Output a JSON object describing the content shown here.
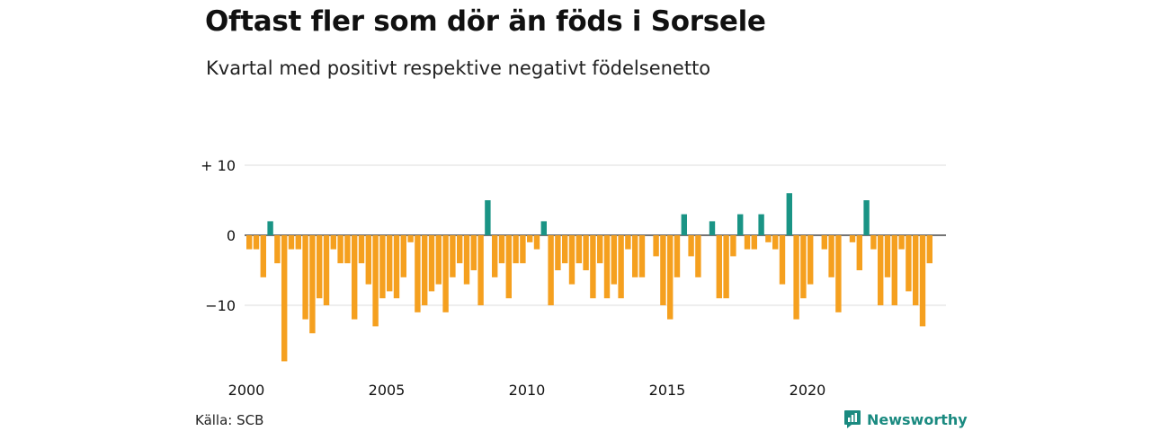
{
  "title": "Oftast fler som dör än föds i Sorsele",
  "subtitle": "Kvartal med positivt respektive negativt födelsenetto",
  "source": "Källa: SCB",
  "brand": {
    "name": "Newsworthy",
    "icon": "newsworthy-logo-icon",
    "color": "#1a8a80"
  },
  "colors": {
    "positive": "#1a9485",
    "negative": "#f5a01f",
    "grid": "#dddddd",
    "zero": "#222222"
  },
  "chart_data": {
    "type": "bar",
    "title": "Oftast fler som dör än föds i Sorsele",
    "subtitle": "Kvartal med positivt respektive negativt födelsenetto",
    "ylim": [
      -18,
      10
    ],
    "y_ticks": [
      {
        "value": 10,
        "label": "+ 10"
      },
      {
        "value": 0,
        "label": "0"
      },
      {
        "value": -10,
        "label": "−10"
      }
    ],
    "x_ticks": [
      {
        "year": 2000,
        "label": "2000"
      },
      {
        "year": 2005,
        "label": "2005"
      },
      {
        "year": 2010,
        "label": "2010"
      },
      {
        "year": 2015,
        "label": "2015"
      },
      {
        "year": 2020,
        "label": "2020"
      }
    ],
    "start": "2000 Q1",
    "grid": true,
    "legend": "none",
    "values": [
      -2,
      -2,
      -6,
      2,
      -4,
      -18,
      -2,
      -2,
      -12,
      -14,
      -9,
      -10,
      -2,
      -4,
      -4,
      -12,
      -4,
      -7,
      -13,
      -9,
      -8,
      -9,
      -6,
      -1,
      -11,
      -10,
      -8,
      -7,
      -11,
      -6,
      -4,
      -7,
      -5,
      -10,
      5,
      -6,
      -4,
      -9,
      -4,
      -4,
      -1,
      -2,
      2,
      -10,
      -5,
      -4,
      -7,
      -4,
      -5,
      -9,
      -4,
      -9,
      -7,
      -9,
      -2,
      -6,
      -6,
      0,
      -3,
      -10,
      -12,
      -6,
      3,
      -3,
      -6,
      0,
      2,
      -9,
      -9,
      -3,
      3,
      -2,
      -2,
      3,
      -1,
      -2,
      -7,
      6,
      -12,
      -9,
      -7,
      0,
      -2,
      -6,
      -11,
      0,
      -1,
      -5,
      5,
      -2,
      -10,
      -6,
      -10,
      -2,
      -8,
      -10,
      -13,
      -4
    ]
  }
}
